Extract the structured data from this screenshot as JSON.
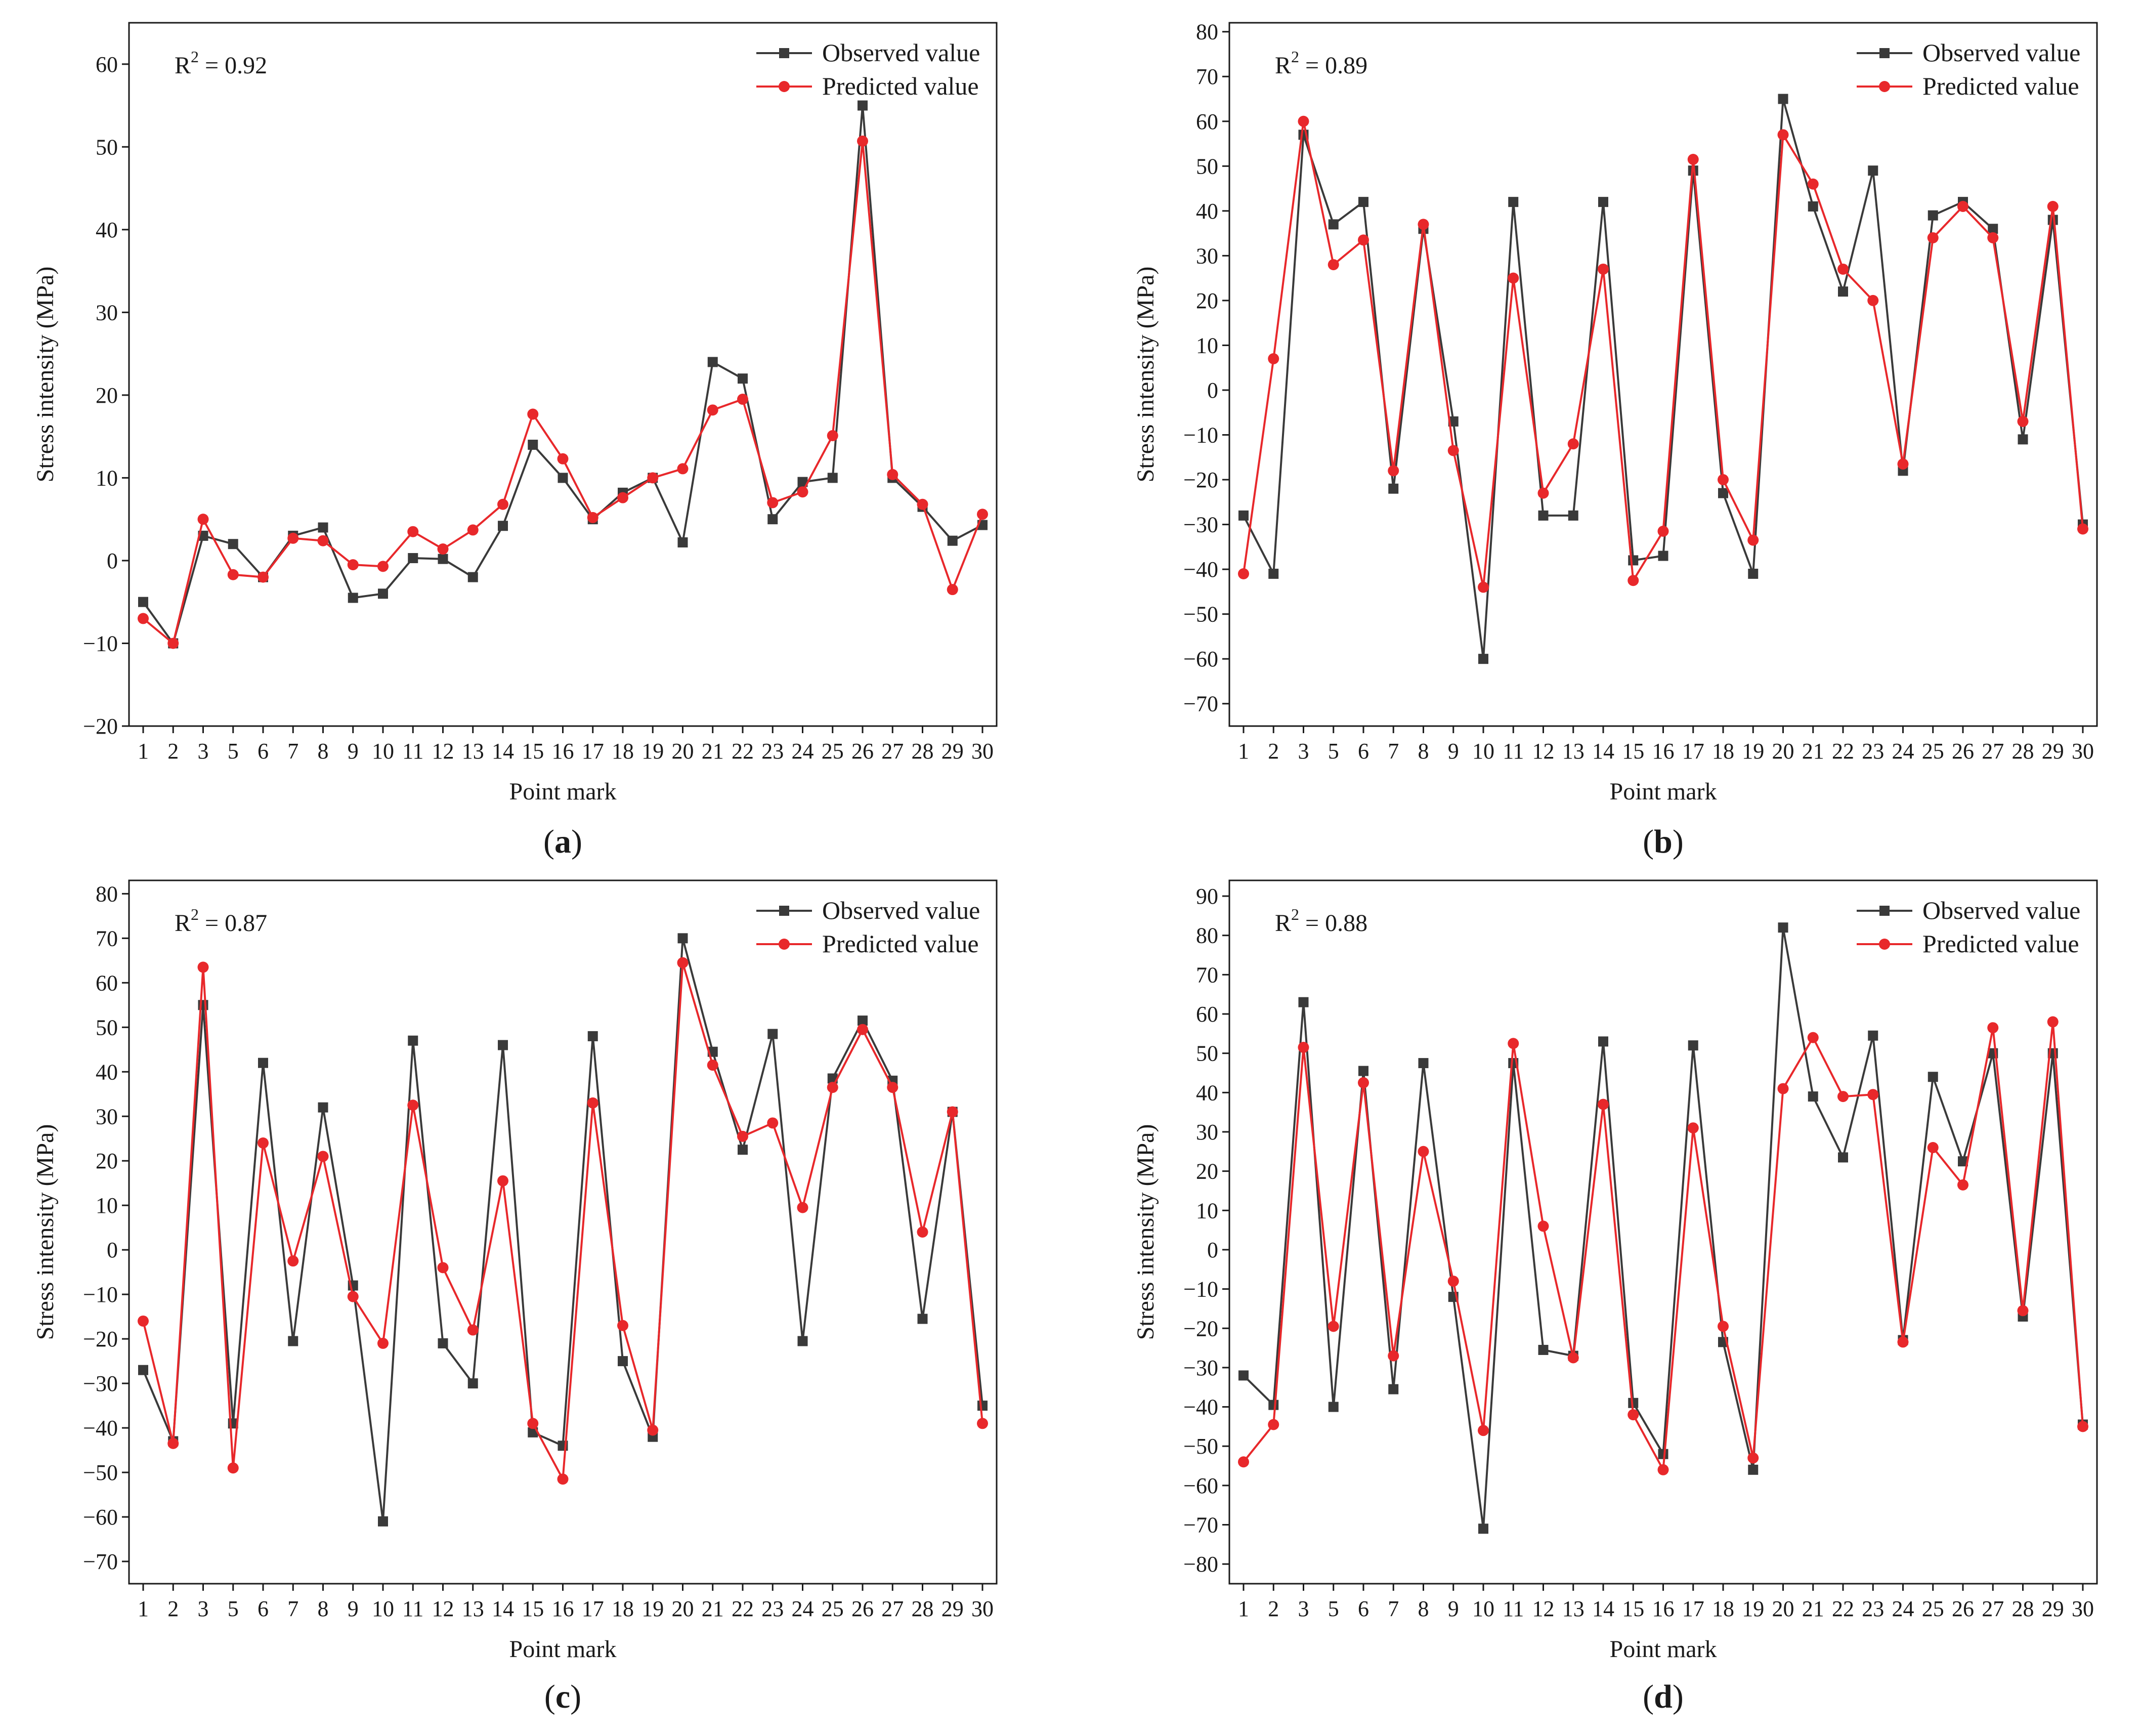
{
  "figure": {
    "colors": {
      "observed": "#3a3a3a",
      "predicted": "#e8282b",
      "axis": "#1a1a1a"
    }
  },
  "chart_data": [
    {
      "type": "line",
      "panel": "a",
      "panel_label": "(a)",
      "r2_text": "R",
      "r2_sup": "2",
      "r2_value": " = 0.92",
      "xlabel": "Point mark",
      "ylabel": "Stress intensity (MPa)",
      "ylim": [
        -20,
        65
      ],
      "yticks": [
        -20,
        -10,
        0,
        10,
        20,
        30,
        40,
        50,
        60
      ],
      "categories": [
        "1",
        "2",
        "3",
        "5",
        "6",
        "7",
        "8",
        "9",
        "10",
        "11",
        "12",
        "13",
        "14",
        "15",
        "16",
        "17",
        "18",
        "19",
        "20",
        "21",
        "22",
        "23",
        "24",
        "25",
        "26",
        "27",
        "28",
        "29",
        "30"
      ],
      "legend_position": "top-right",
      "series": [
        {
          "name": "Observed value",
          "key": "observed",
          "marker": "square",
          "values": [
            -5,
            -10,
            3,
            2,
            -2,
            3,
            4,
            -4.5,
            -4,
            0.3,
            0.2,
            -2,
            4.2,
            14,
            10,
            5,
            8.2,
            10,
            2.2,
            24,
            22,
            5,
            9.5,
            10,
            55,
            10,
            6.5,
            2.4,
            4.3
          ]
        },
        {
          "name": "Predicted value",
          "key": "predicted",
          "marker": "circle",
          "values": [
            -7,
            -10,
            5,
            -1.7,
            -2,
            2.7,
            2.4,
            -0.5,
            -0.7,
            3.5,
            1.4,
            3.7,
            6.8,
            17.7,
            12.3,
            5.2,
            7.6,
            10,
            11.1,
            18.2,
            19.5,
            7,
            8.3,
            15.1,
            50.7,
            10.4,
            6.8,
            -3.5,
            5.6
          ]
        }
      ]
    },
    {
      "type": "line",
      "panel": "b",
      "panel_label": "(b)",
      "r2_text": "R",
      "r2_sup": "2",
      "r2_value": " = 0.89",
      "xlabel": "Point mark",
      "ylabel": "Stress intensity (MPa)",
      "ylim": [
        -75,
        82
      ],
      "yticks": [
        -70,
        -60,
        -50,
        -40,
        -30,
        -20,
        -10,
        0,
        10,
        20,
        30,
        40,
        50,
        60,
        70,
        80
      ],
      "categories": [
        "1",
        "2",
        "3",
        "5",
        "6",
        "7",
        "8",
        "9",
        "10",
        "11",
        "12",
        "13",
        "14",
        "15",
        "16",
        "17",
        "18",
        "19",
        "20",
        "21",
        "22",
        "23",
        "24",
        "25",
        "26",
        "27",
        "28",
        "29",
        "30"
      ],
      "legend_position": "top-right",
      "series": [
        {
          "name": "Observed value",
          "key": "observed",
          "marker": "square",
          "values": [
            -28,
            -41,
            57,
            37,
            42,
            -22,
            36,
            -7,
            -60,
            42,
            -28,
            -28,
            42,
            -38,
            -37,
            49,
            -23,
            -41,
            65,
            41,
            22,
            49,
            -18,
            39,
            42,
            36,
            -11,
            38,
            -30
          ]
        },
        {
          "name": "Predicted value",
          "key": "predicted",
          "marker": "circle",
          "values": [
            -41,
            7,
            60,
            28,
            33.5,
            -18,
            37,
            -13.5,
            -44,
            25,
            -23,
            -12,
            27,
            -42.5,
            -31.5,
            51.5,
            -20,
            -33.5,
            57,
            46,
            27,
            20,
            -16.5,
            34,
            41,
            34,
            -7,
            41,
            -31
          ]
        }
      ]
    },
    {
      "type": "line",
      "panel": "c",
      "panel_label": "(c)",
      "r2_text": "R",
      "r2_sup": "2",
      "r2_value": " = 0.87",
      "xlabel": "Point mark",
      "ylabel": "Stress intensity (MPa)",
      "ylim": [
        -75,
        83
      ],
      "yticks": [
        -70,
        -60,
        -50,
        -40,
        -30,
        -20,
        -10,
        0,
        10,
        20,
        30,
        40,
        50,
        60,
        70,
        80
      ],
      "categories": [
        "1",
        "2",
        "3",
        "5",
        "6",
        "7",
        "8",
        "9",
        "10",
        "11",
        "12",
        "13",
        "14",
        "15",
        "16",
        "17",
        "18",
        "19",
        "20",
        "21",
        "22",
        "23",
        "24",
        "25",
        "26",
        "27",
        "28",
        "29",
        "30"
      ],
      "legend_position": "top-right",
      "series": [
        {
          "name": "Observed value",
          "key": "observed",
          "marker": "square",
          "values": [
            -27,
            -43,
            55,
            -39,
            42,
            -20.5,
            32,
            -8,
            -61,
            47,
            -21,
            -30,
            46,
            -41,
            -44,
            48,
            -25,
            -42,
            70,
            44.5,
            22.5,
            48.5,
            -20.5,
            38.5,
            51.5,
            38,
            -15.5,
            31,
            -35
          ]
        },
        {
          "name": "Predicted value",
          "key": "predicted",
          "marker": "circle",
          "values": [
            -16,
            -43.5,
            63.5,
            -49,
            24,
            -2.5,
            21,
            -10.5,
            -21,
            32.5,
            -4,
            -18,
            15.5,
            -39,
            -51.5,
            33,
            -17,
            -40.5,
            64.5,
            41.5,
            25.5,
            28.5,
            9.5,
            36.5,
            49.5,
            36.5,
            4,
            31,
            -39
          ]
        }
      ]
    },
    {
      "type": "line",
      "panel": "d",
      "panel_label": "(d)",
      "r2_text": "R",
      "r2_sup": "2",
      "r2_value": " = 0.88",
      "xlabel": "Point mark",
      "ylabel": "Stress intensity (MPa)",
      "ylim": [
        -85,
        94
      ],
      "yticks": [
        -80,
        -70,
        -60,
        -50,
        -40,
        -30,
        -20,
        -10,
        0,
        10,
        20,
        30,
        40,
        50,
        60,
        70,
        80,
        90
      ],
      "categories": [
        "1",
        "2",
        "3",
        "5",
        "6",
        "7",
        "8",
        "9",
        "10",
        "11",
        "12",
        "13",
        "14",
        "15",
        "16",
        "17",
        "18",
        "19",
        "20",
        "21",
        "22",
        "23",
        "24",
        "25",
        "26",
        "27",
        "28",
        "29",
        "30"
      ],
      "legend_position": "top-right",
      "series": [
        {
          "name": "Observed value",
          "key": "observed",
          "marker": "square",
          "values": [
            -32,
            -39.5,
            63,
            -40,
            45.5,
            -35.5,
            47.5,
            -12,
            -71,
            47.5,
            -25.5,
            -27,
            53,
            -39,
            -52,
            52,
            -23.5,
            -56,
            82,
            39,
            23.5,
            54.5,
            -23,
            44,
            22.5,
            50,
            -17,
            50,
            -44.5
          ]
        },
        {
          "name": "Predicted value",
          "key": "predicted",
          "marker": "circle",
          "values": [
            -54,
            -44.5,
            51.5,
            -19.5,
            42.5,
            -27,
            25,
            -8,
            -46,
            52.5,
            6,
            -27.5,
            37,
            -42,
            -56,
            31,
            -19.5,
            -53,
            41,
            54,
            39,
            39.5,
            -23.5,
            26,
            16.5,
            56.5,
            -15.5,
            58,
            -45
          ]
        }
      ]
    }
  ]
}
